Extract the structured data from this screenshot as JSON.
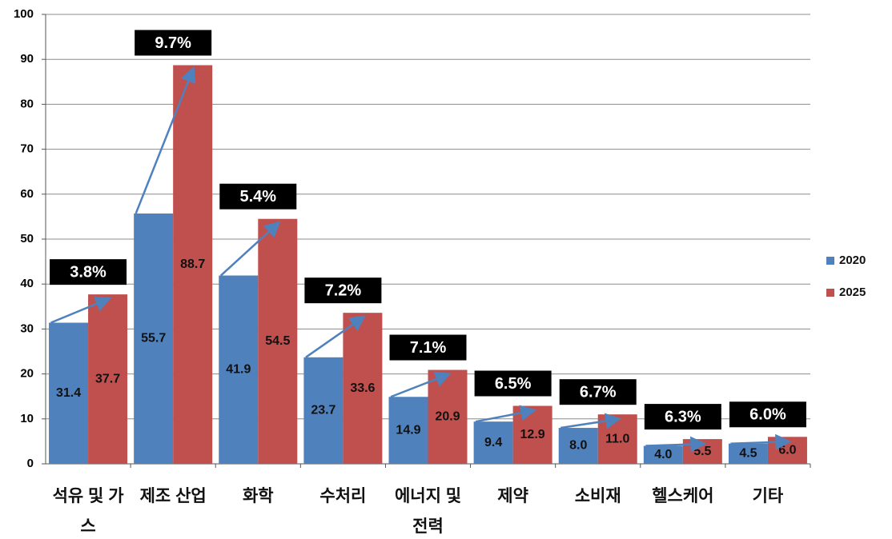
{
  "chart_data": {
    "type": "bar",
    "categories": [
      "석유 및 가스",
      "제조 산업",
      "화학",
      "수처리",
      "에너지 및 전력",
      "제약",
      "소비재",
      "헬스케어",
      "기타"
    ],
    "series": [
      {
        "name": "2020",
        "color": "#4f81bd",
        "values": [
          31.4,
          55.7,
          41.9,
          23.7,
          14.9,
          9.4,
          8.0,
          4.0,
          4.5
        ],
        "value_labels": [
          "31.4",
          "55.7",
          "41.9",
          "23.7",
          "14.9",
          "9.4",
          "8.0",
          "4.0",
          "4.5"
        ]
      },
      {
        "name": "2025",
        "color": "#c0504d",
        "values": [
          37.7,
          88.7,
          54.5,
          33.6,
          20.9,
          12.9,
          11.0,
          5.5,
          6.0
        ],
        "value_labels": [
          "37.7",
          "88.7",
          "54.5",
          "33.6",
          "20.9",
          "12.9",
          "11.0",
          "5.5",
          "6.0"
        ]
      }
    ],
    "growth_labels": [
      "3.8%",
      "9.7%",
      "5.4%",
      "7.2%",
      "7.1%",
      "6.5%",
      "6.7%",
      "6.3%",
      "6.0%"
    ],
    "ylim": [
      0,
      100
    ],
    "yticks": [
      0,
      10,
      20,
      30,
      40,
      50,
      60,
      70,
      80,
      90,
      100
    ],
    "grid": true,
    "legend": "right"
  }
}
